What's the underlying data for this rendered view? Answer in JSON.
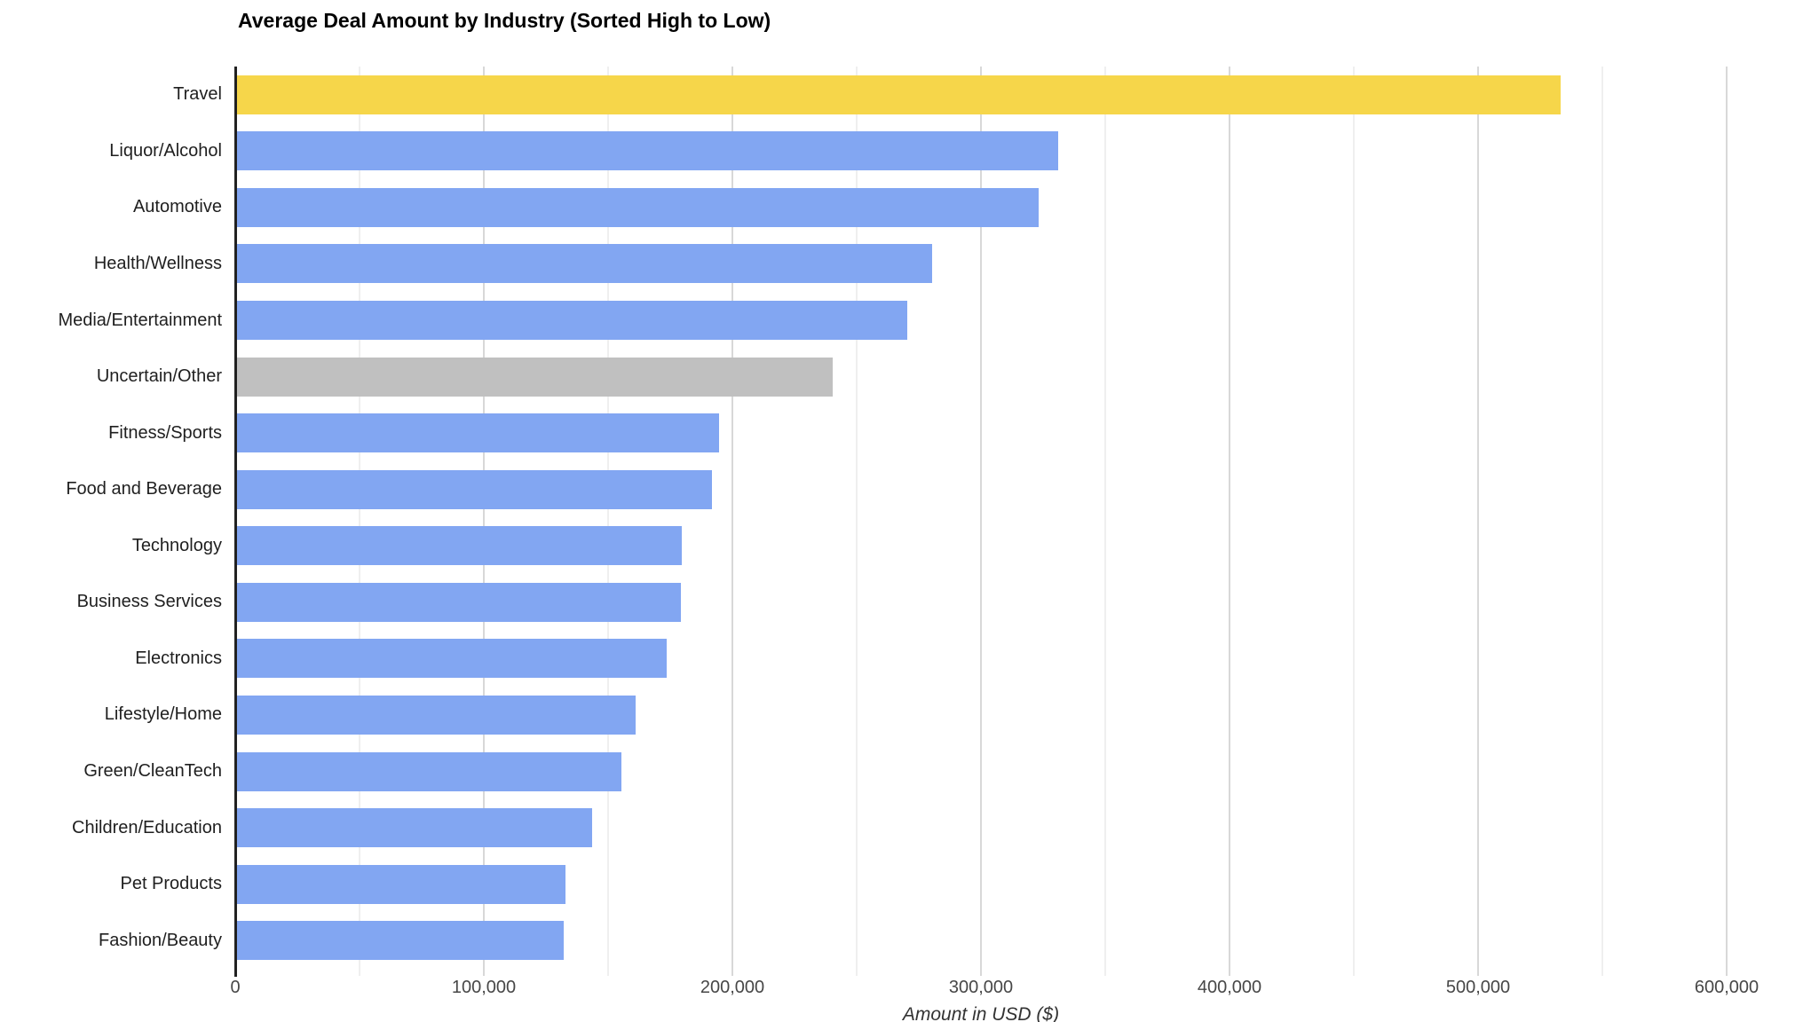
{
  "title": "Average Deal Amount by Industry (Sorted High to Low)",
  "chart_data": {
    "type": "bar",
    "orientation": "horizontal",
    "title": "Average Deal Amount by Industry (Sorted High to Low)",
    "xlabel": "Amount in USD ($)",
    "ylabel": "",
    "xlim": [
      0,
      600000
    ],
    "grid": "vertical gridlines, major every 100,000, minor every 50,000",
    "legend": "none",
    "sort_order": "descending",
    "categories": [
      "Travel",
      "Liquor/Alcohol",
      "Automotive",
      "Health/Wellness",
      "Media/Entertainment",
      "Uncertain/Other",
      "Fitness/Sports",
      "Food and Beverage",
      "Technology",
      "Business Services",
      "Electronics",
      "Lifestyle/Home",
      "Green/CleanTech",
      "Children/Education",
      "Pet Products",
      "Fashion/Beauty"
    ],
    "values": [
      532500,
      330500,
      322500,
      279500,
      269500,
      239500,
      194000,
      191000,
      179000,
      178500,
      173000,
      160500,
      154500,
      143000,
      132000,
      131500
    ],
    "bar_color_keys": [
      "highlight",
      "default",
      "default",
      "default",
      "default",
      "muted",
      "default",
      "default",
      "default",
      "default",
      "default",
      "default",
      "default",
      "default",
      "default",
      "default"
    ],
    "x_ticks": [
      {
        "value": 0,
        "label": "0"
      },
      {
        "value": 100000,
        "label": "100,000"
      },
      {
        "value": 200000,
        "label": "200,000"
      },
      {
        "value": 300000,
        "label": "300,000"
      },
      {
        "value": 400000,
        "label": "400,000"
      },
      {
        "value": 500000,
        "label": "500,000"
      },
      {
        "value": 600000,
        "label": "600,000"
      }
    ],
    "minor_tick_step": 50000,
    "colors": {
      "default": "#82A6F2",
      "highlight": "#F6D64A",
      "muted": "#C0C0C0",
      "axis_line": "#212121",
      "gridline_major": "#D8D8D8",
      "gridline_minor": "#EFEFEF",
      "title_text": "#000000",
      "tick_text": "#474747",
      "category_text": "#1f1f1f",
      "axis_title_text": "#333333"
    }
  }
}
